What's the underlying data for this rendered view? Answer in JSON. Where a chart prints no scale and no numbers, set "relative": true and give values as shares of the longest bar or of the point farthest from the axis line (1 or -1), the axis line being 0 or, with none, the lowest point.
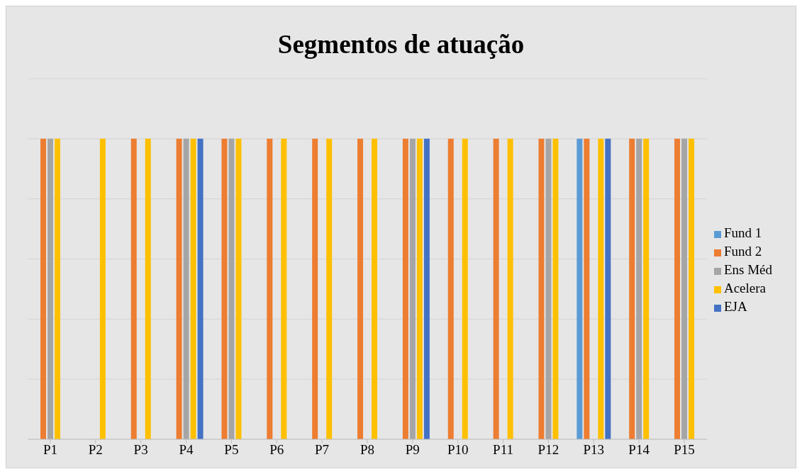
{
  "chart_data": {
    "type": "bar",
    "title": "Segmentos de atuação",
    "relative": true,
    "categories": [
      "P1",
      "P2",
      "P3",
      "P4",
      "P5",
      "P6",
      "P7",
      "P8",
      "P9",
      "P10",
      "P11",
      "P12",
      "P13",
      "P14",
      "P15"
    ],
    "series": [
      {
        "name": "Fund 1",
        "color": "#5b9bd5",
        "values": [
          null,
          null,
          null,
          null,
          null,
          null,
          null,
          null,
          null,
          null,
          null,
          null,
          1,
          null,
          null
        ]
      },
      {
        "name": "Fund 2",
        "color": "#ed7d31",
        "values": [
          1,
          null,
          1,
          1,
          1,
          1,
          1,
          1,
          1,
          1,
          1,
          1,
          1,
          1,
          1
        ]
      },
      {
        "name": "Ens Méd",
        "color": "#a5a5a5",
        "values": [
          1,
          null,
          null,
          1,
          1,
          null,
          null,
          null,
          1,
          null,
          null,
          1,
          null,
          1,
          1
        ]
      },
      {
        "name": "Acelera",
        "color": "#ffc000",
        "values": [
          1,
          1,
          1,
          1,
          1,
          1,
          1,
          1,
          1,
          1,
          1,
          1,
          1,
          1,
          1
        ]
      },
      {
        "name": "EJA",
        "color": "#4472c4",
        "values": [
          null,
          null,
          null,
          1,
          null,
          null,
          null,
          null,
          1,
          null,
          null,
          null,
          1,
          null,
          null
        ]
      }
    ],
    "grid": "y",
    "legend": "right"
  }
}
